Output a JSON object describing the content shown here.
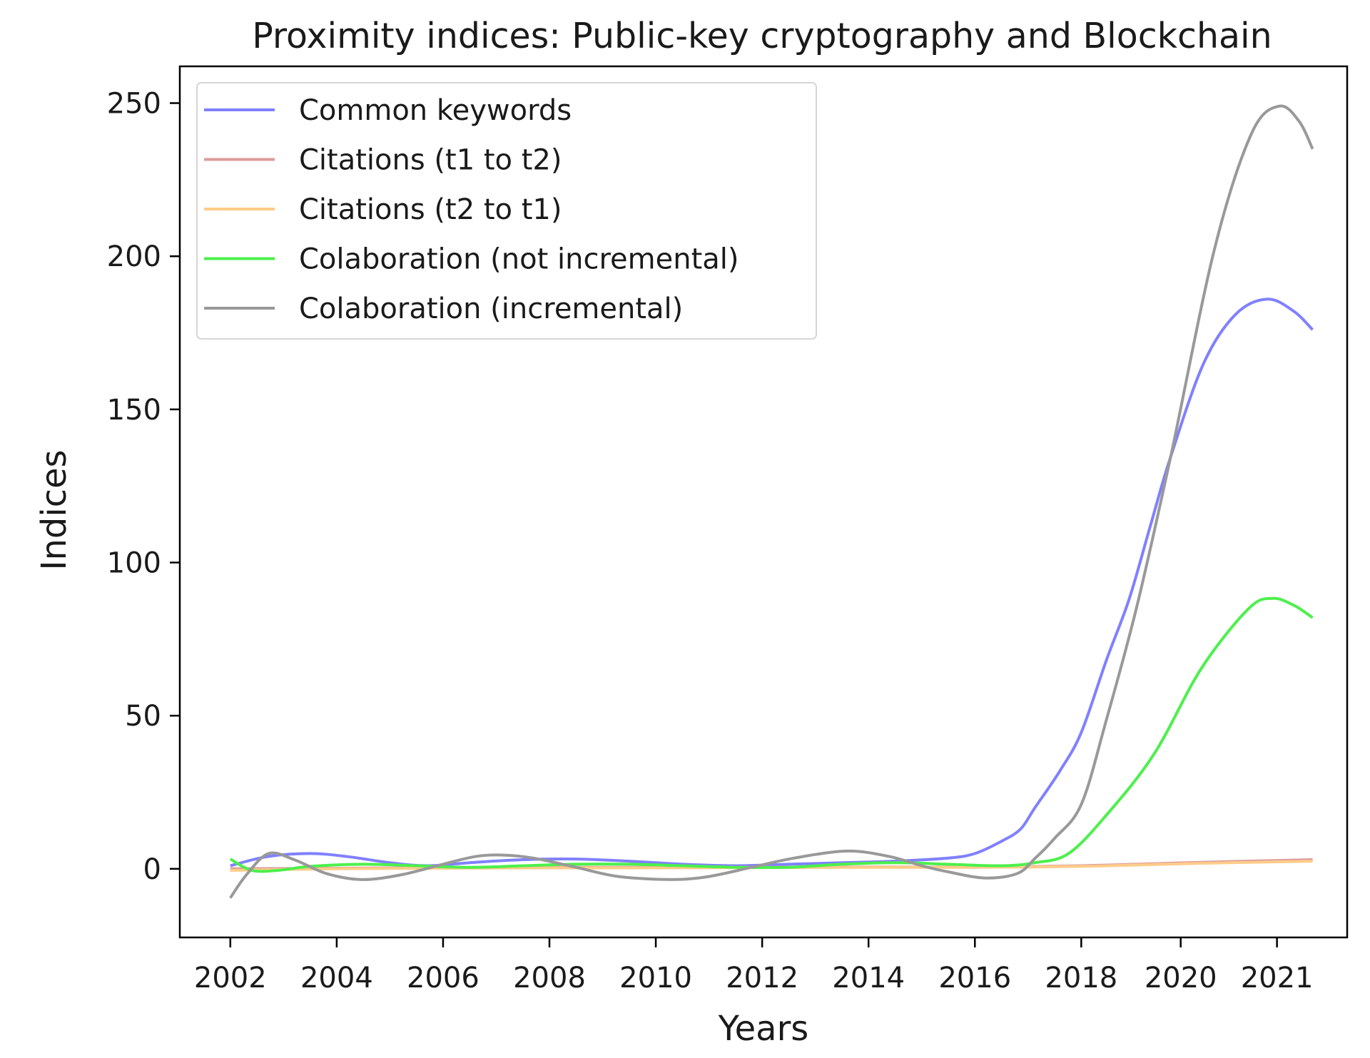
{
  "chart_data": {
    "type": "line",
    "title": "Proximity indices: Public-key cryptography and Blockchain",
    "xlabel": "Years",
    "ylabel": "Indices",
    "xlim": [
      2001.05,
      2023.0
    ],
    "ylim": [
      -22.4,
      262
    ],
    "grid": false,
    "legend_position": "upper-left",
    "x_ticks": [
      {
        "value": 2002,
        "label": "2002"
      },
      {
        "value": 2004,
        "label": "2004"
      },
      {
        "value": 2006,
        "label": "2006"
      },
      {
        "value": 2008,
        "label": "2008"
      },
      {
        "value": 2010,
        "label": "2010"
      },
      {
        "value": 2012,
        "label": "2012"
      },
      {
        "value": 2014,
        "label": "2014"
      },
      {
        "value": 2016,
        "label": "2016"
      },
      {
        "value": 2018,
        "label": "2018"
      },
      {
        "value": 2019.87,
        "label": "2020"
      },
      {
        "value": 2021.68,
        "label": "2021"
      }
    ],
    "y_ticks": [
      {
        "value": 0,
        "label": "0"
      },
      {
        "value": 50,
        "label": "50"
      },
      {
        "value": 100,
        "label": "100"
      },
      {
        "value": 150,
        "label": "150"
      },
      {
        "value": 200,
        "label": "200"
      },
      {
        "value": 250,
        "label": "250"
      }
    ],
    "series": [
      {
        "name": "Common keywords",
        "color": "#8080ff",
        "x": [
          2002,
          2002.7,
          2003.5,
          2004.2,
          2005,
          2005.7,
          2006.5,
          2007.5,
          2008.5,
          2009.5,
          2010.5,
          2011.5,
          2012.5,
          2013.5,
          2014.5,
          2015.5,
          2016,
          2016.5,
          2016.86,
          2017.13,
          2017.6,
          2018,
          2018.47,
          2018.9,
          2019.3,
          2019.68,
          2020.3,
          2020.9,
          2021.5,
          2022.0,
          2022.35
        ],
        "y": [
          1,
          4,
          5,
          4,
          2,
          1,
          2,
          3,
          3.2,
          2.5,
          1.5,
          1,
          1.5,
          2,
          2.5,
          3.5,
          5,
          9,
          13,
          20,
          32,
          44.5,
          68,
          88,
          112,
          134.5,
          165,
          181,
          186,
          182,
          176
        ]
      },
      {
        "name": "Citations (t1 to t2)",
        "color": "#dc9a9a",
        "x": [
          2002,
          2004,
          2006,
          2008,
          2010,
          2012,
          2014,
          2016,
          2018,
          2020,
          2022.35
        ],
        "y": [
          0,
          0.2,
          0.4,
          0.5,
          0.5,
          0.5,
          0.6,
          0.6,
          1,
          2,
          3
        ]
      },
      {
        "name": "Citations (t2 to t1)",
        "color": "#ffcc8a",
        "x": [
          2002,
          2004,
          2006,
          2008,
          2010,
          2012,
          2014,
          2016,
          2018,
          2020,
          2022.35
        ],
        "y": [
          -0.5,
          0,
          0.2,
          0.3,
          0.3,
          0.4,
          0.5,
          0.5,
          0.8,
          1.7,
          2.5
        ]
      },
      {
        "name": "Colaboration (not incremental)",
        "color": "#4cf04c",
        "x": [
          2002,
          2002.4,
          2002.9,
          2003.5,
          2004.5,
          2005.5,
          2006.5,
          2007.5,
          2008.5,
          2009.5,
          2010.5,
          2011.5,
          2012.5,
          2013.5,
          2014.5,
          2015.5,
          2016.5,
          2017.13,
          2017.76,
          2018.47,
          2019.37,
          2020.26,
          2021.15,
          2021.6,
          2022.0,
          2022.35
        ],
        "y": [
          3.2,
          -0.5,
          -0.5,
          0.8,
          1.5,
          1,
          0.5,
          1,
          1.5,
          1.5,
          1,
          0.5,
          0.5,
          1.5,
          2,
          1.5,
          1,
          2,
          5,
          17.5,
          37.5,
          65.5,
          85,
          88.3,
          86,
          82
        ]
      },
      {
        "name": "Colaboration (incremental)",
        "color": "#999999",
        "x": [
          2002,
          2002.3,
          2002.72,
          2003.2,
          2003.8,
          2004.47,
          2005.2,
          2006,
          2006.6,
          2007.1,
          2007.7,
          2008.5,
          2009.3,
          2010.3,
          2011,
          2011.8,
          2012.6,
          2013.6,
          2014.4,
          2015,
          2015.5,
          2016.2,
          2016.8,
          2017.13,
          2017.5,
          2018,
          2018.47,
          2019.05,
          2019.68,
          2020.5,
          2021.2,
          2021.72,
          2022.1,
          2022.35
        ],
        "y": [
          -9.5,
          -2,
          5,
          3,
          -1.5,
          -3.5,
          -2,
          1.5,
          4,
          4.5,
          3.5,
          0.5,
          -2.5,
          -3.5,
          -2.5,
          0.5,
          3.5,
          5.8,
          4,
          1,
          -1,
          -3,
          -1.5,
          3.4,
          10,
          21,
          48.5,
          86,
          134.5,
          202,
          240,
          249,
          244,
          235
        ]
      }
    ]
  }
}
